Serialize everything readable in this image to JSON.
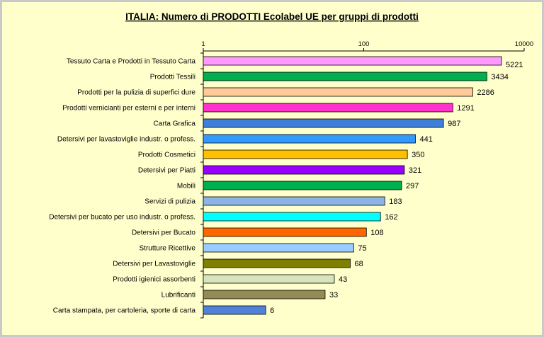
{
  "chart_data": {
    "type": "bar",
    "orientation": "horizontal",
    "title": "ITALIA: Numero di PRODOTTI  Ecolabel UE per gruppi di prodotti",
    "x_scale": "log",
    "xlim": [
      1,
      10000
    ],
    "x_ticks": [
      {
        "value": 1,
        "label": "1"
      },
      {
        "value": 100,
        "label": "100"
      },
      {
        "value": 10000,
        "label": "10000"
      }
    ],
    "categories": [
      "Tessuto Carta e Prodotti in Tessuto Carta",
      "Prodotti Tessili",
      "Prodotti per la pulizia di superfici dure",
      "Prodotti vernicianti per esterni e per interni",
      "Carta Grafica",
      "Detersivi per lavastoviglie industr. o profess.",
      "Prodotti Cosmetici",
      "Detersivi per Piatti",
      "Mobili",
      "Servizi di pulizia",
      "Detersivi per bucato per uso industr. o profess.",
      "Detersivi per Bucato",
      "Strutture Ricettive",
      "Detersivi per Lavastoviglie",
      "Prodotti igienici assorbenti",
      "Lubrificanti",
      "Carta stampata, per cartoleria, sporte di carta"
    ],
    "values": [
      5221,
      3434,
      2286,
      1291,
      987,
      441,
      350,
      321,
      297,
      183,
      162,
      108,
      75,
      68,
      43,
      33,
      6
    ],
    "value_labels": [
      "5221",
      "3434",
      "2286",
      "1291",
      "987",
      "441",
      "350",
      "321",
      "297",
      "183",
      "162",
      "108",
      "75",
      "68",
      "43",
      "33",
      "6"
    ],
    "colors": [
      "#ff99ff",
      "#00b050",
      "#ffcc99",
      "#ff33cc",
      "#3d7fd9",
      "#3399ff",
      "#ffc000",
      "#9900ff",
      "#00b050",
      "#8db4e2",
      "#00ffff",
      "#ff6600",
      "#99ccff",
      "#808000",
      "#d8e4bc",
      "#948a54",
      "#4f81d9"
    ],
    "grid": false,
    "legend": "none"
  }
}
